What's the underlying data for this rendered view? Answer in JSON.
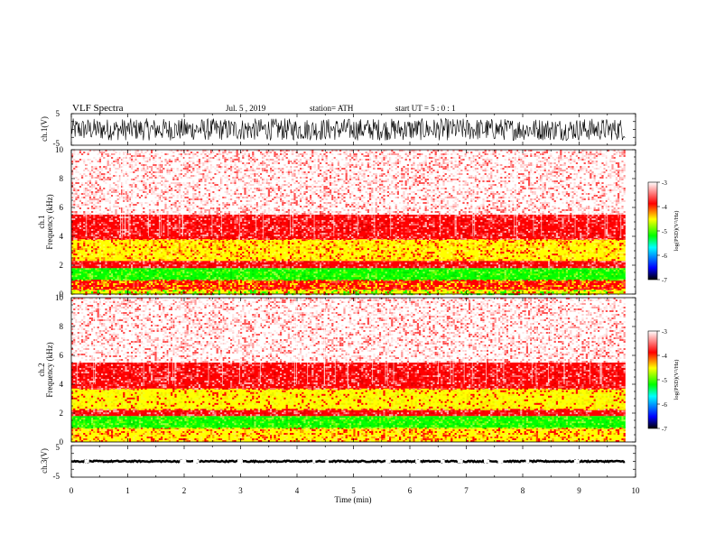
{
  "header": {
    "title": "VLF  Spectra",
    "date": "Jul.  5  , 2019",
    "station": "station= ATH",
    "start": "start  UT  =    5  : 0   : 1"
  },
  "chart_data": [
    {
      "type": "line",
      "name": "ch1-waveform",
      "ylabel": "ch.1(V)",
      "ylim": [
        -5,
        5
      ],
      "yticks": [
        "5",
        "-5"
      ],
      "xlim": [
        0,
        10
      ],
      "data_extent_min": [
        0,
        9.82
      ],
      "amplitude_envelope": [
        -3.5,
        3.5
      ]
    },
    {
      "type": "heatmap",
      "name": "ch1-spectrogram",
      "ylabel": "ch.1\nFrequency  (kHz)",
      "ylim": [
        0,
        10
      ],
      "yticks": [
        "0",
        "2",
        "4",
        "6",
        "8",
        "10"
      ],
      "xlim": [
        0,
        10
      ],
      "data_extent_min": [
        0,
        9.82
      ],
      "bands": [
        {
          "from_khz": 0,
          "to_khz": 0.3,
          "dominant": "yellow-green"
        },
        {
          "from_khz": 0.3,
          "to_khz": 1.0,
          "dominant": "red-yellow lines"
        },
        {
          "from_khz": 1.0,
          "to_khz": 1.8,
          "dominant": "green"
        },
        {
          "from_khz": 1.8,
          "to_khz": 2.3,
          "dominant": "red"
        },
        {
          "from_khz": 2.3,
          "to_khz": 3.8,
          "dominant": "yellow-red"
        },
        {
          "from_khz": 3.8,
          "to_khz": 5.5,
          "dominant": "red"
        },
        {
          "from_khz": 5.5,
          "to_khz": 10,
          "dominant": "light red"
        }
      ]
    },
    {
      "type": "heatmap",
      "name": "ch2-spectrogram",
      "ylabel": "ch.2\nFrequency  (kHz)",
      "ylim": [
        0,
        10
      ],
      "yticks": [
        "0",
        "2",
        "4",
        "6",
        "8",
        "10"
      ],
      "xlim": [
        0,
        10
      ],
      "data_extent_min": [
        0,
        9.82
      ],
      "bands": [
        {
          "from_khz": 0,
          "to_khz": 1.0,
          "dominant": "yellow-red lines"
        },
        {
          "from_khz": 1.0,
          "to_khz": 1.8,
          "dominant": "green"
        },
        {
          "from_khz": 1.8,
          "to_khz": 2.3,
          "dominant": "red"
        },
        {
          "from_khz": 2.3,
          "to_khz": 3.7,
          "dominant": "yellow"
        },
        {
          "from_khz": 3.7,
          "to_khz": 5.5,
          "dominant": "red"
        },
        {
          "from_khz": 5.5,
          "to_khz": 10,
          "dominant": "light red"
        }
      ]
    },
    {
      "type": "line",
      "name": "ch3-waveform",
      "ylabel": "ch.3(V)",
      "ylim": [
        -5,
        5
      ],
      "yticks": [
        "5",
        "-5"
      ],
      "xlim": [
        0,
        10
      ],
      "xlabel": "Time  (min)",
      "xticks": [
        "0",
        "1",
        "2",
        "3",
        "4",
        "5",
        "6",
        "7",
        "8",
        "9",
        "10"
      ],
      "data_extent_min": [
        0,
        9.82
      ],
      "baseline_v": 0,
      "amplitude_envelope": [
        -0.5,
        0.5
      ]
    }
  ],
  "colorbar": {
    "label": "log(PSD)(V²/Hz)",
    "ticks": [
      "-3",
      "-4",
      "-5",
      "-6",
      "-7"
    ],
    "range": [
      -7,
      -3
    ],
    "stops": [
      "#000000",
      "#0000ff",
      "#00ffff",
      "#00ff00",
      "#ffff00",
      "#ff0000",
      "#ffffff"
    ]
  }
}
